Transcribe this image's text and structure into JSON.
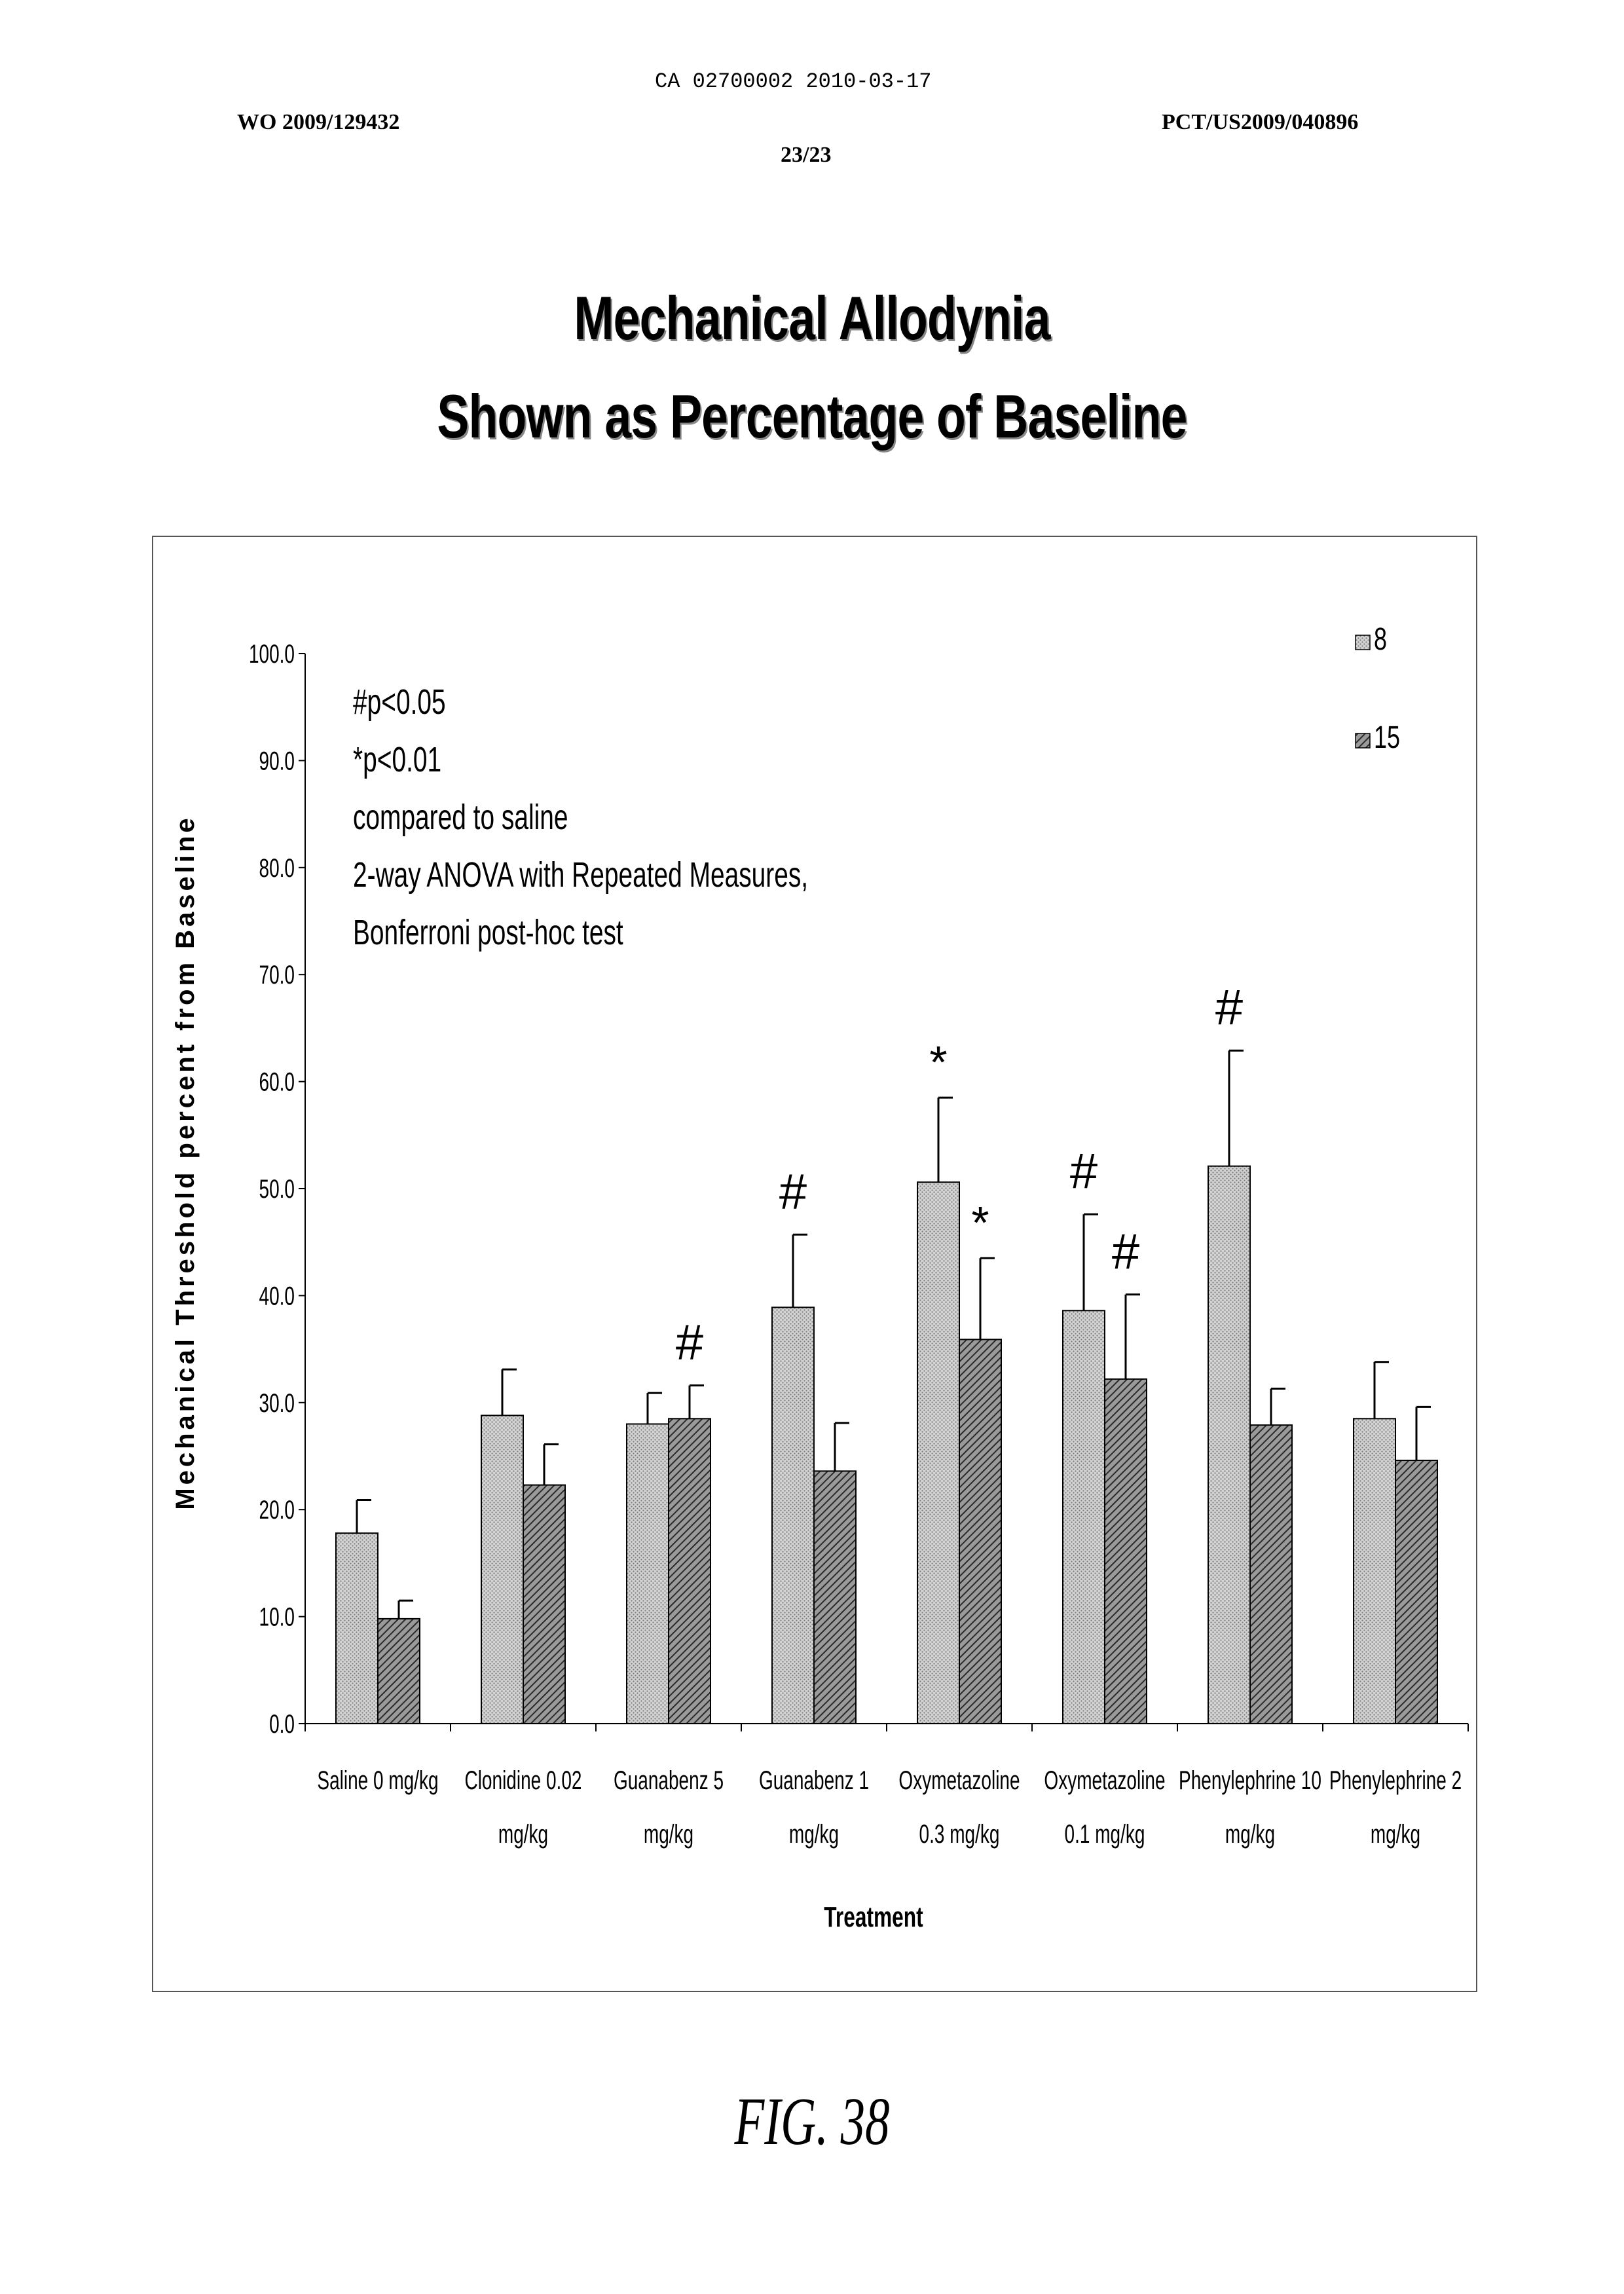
{
  "header": {
    "publication": "CA 02700002 2010-03-17",
    "wo_number": "WO 2009/129432",
    "pct_number": "PCT/US2009/040896",
    "sheet": "23/23"
  },
  "figure_label": "FIG. 38",
  "chart_data": {
    "type": "bar",
    "title_lines": [
      "Mechanical Allodynia",
      "Shown as Percentage of Baseline"
    ],
    "xlabel": "Treatment",
    "ylabel": "Mechanical Threshold percent from Baseline",
    "ylim": [
      0,
      100
    ],
    "yticks": [
      "0.0",
      "10.0",
      "20.0",
      "30.0",
      "40.0",
      "50.0",
      "60.0",
      "70.0",
      "80.0",
      "90.0",
      "100.0"
    ],
    "categories": [
      [
        "Saline 0 mg/kg"
      ],
      [
        "Clonidine 0.02",
        "mg/kg"
      ],
      [
        "Guanabenz 5",
        "mg/kg"
      ],
      [
        "Guanabenz 1",
        "mg/kg"
      ],
      [
        "Oxymetazoline",
        "0.3 mg/kg"
      ],
      [
        "Oxymetazoline",
        "0.1 mg/kg"
      ],
      [
        "Phenylephrine 10",
        "mg/kg"
      ],
      [
        "Phenylephrine 2",
        "mg/kg"
      ]
    ],
    "series": [
      {
        "name": "8",
        "values": [
          17.8,
          28.8,
          28.0,
          38.9,
          50.6,
          38.6,
          52.1,
          28.5
        ],
        "errors": [
          3.1,
          4.3,
          2.9,
          6.8,
          7.9,
          9.0,
          10.8,
          5.3
        ],
        "markers": [
          "",
          "",
          "",
          "#",
          "*",
          "#",
          "#",
          ""
        ]
      },
      {
        "name": "15",
        "values": [
          9.8,
          22.3,
          28.5,
          23.6,
          35.9,
          32.2,
          27.9,
          24.6
        ],
        "errors": [
          1.7,
          3.8,
          3.1,
          4.5,
          7.6,
          7.9,
          3.4,
          5.0
        ],
        "markers": [
          "",
          "",
          "#",
          "",
          "*",
          "#",
          "",
          ""
        ]
      }
    ],
    "annotation_lines": [
      "#p<0.05",
      "*p<0.01",
      "compared to saline",
      "2-way ANOVA with Repeated Measures,",
      "Bonferroni post-hoc test"
    ],
    "legend_position": "top-right",
    "grid": false,
    "colors": {
      "series_8": "#c8c8c8",
      "series_15": "#6a6a6a"
    }
  }
}
